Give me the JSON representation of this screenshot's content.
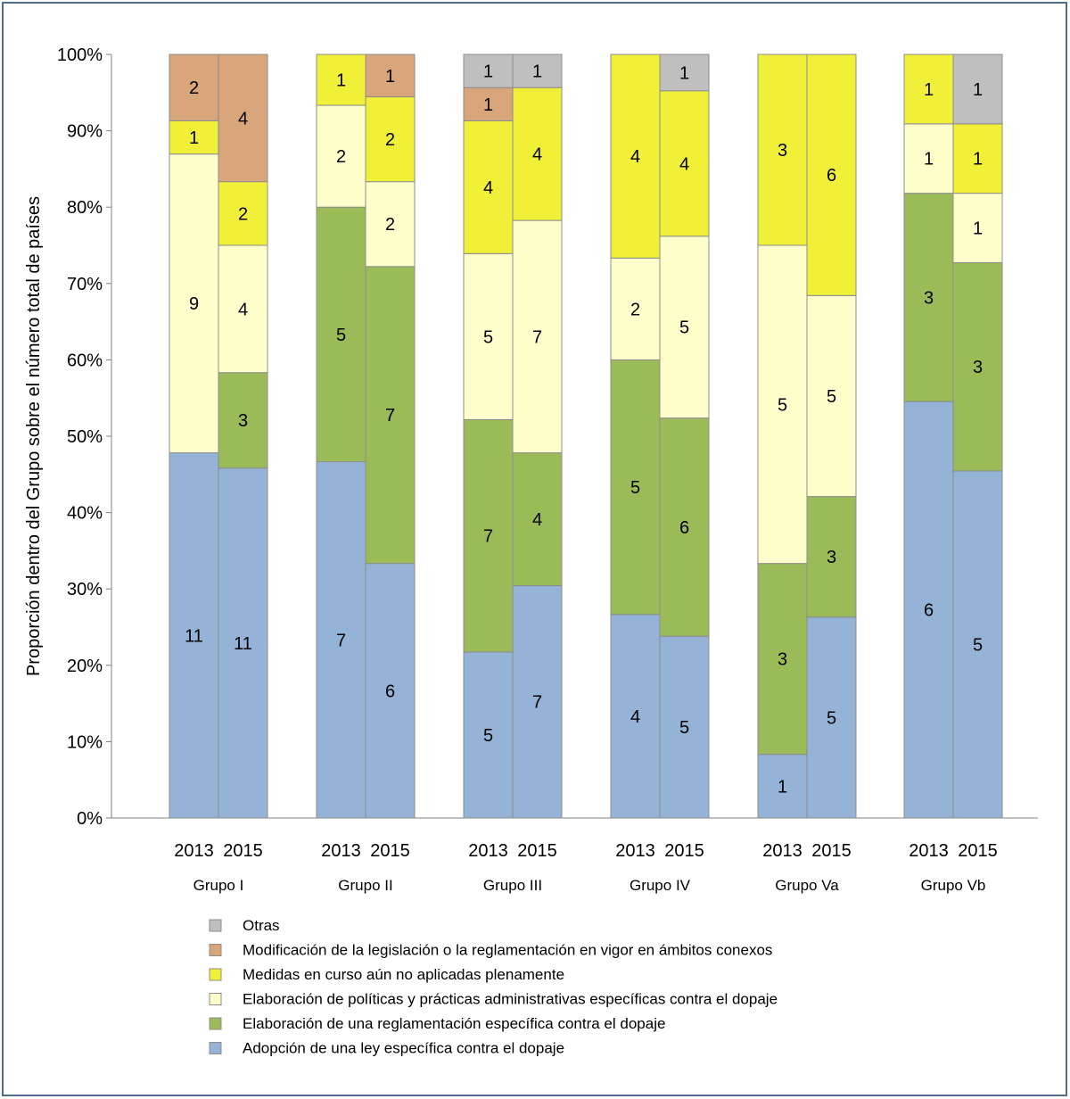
{
  "chart_data": {
    "type": "bar",
    "stacked": true,
    "normalized": true,
    "title": "",
    "ylabel": "Proporción dentro del Grupo sobre el número total de países",
    "xlabel": "",
    "ylim": [
      0,
      100
    ],
    "yticks": [
      "0%",
      "10%",
      "20%",
      "30%",
      "40%",
      "50%",
      "60%",
      "70%",
      "80%",
      "90%",
      "100%"
    ],
    "groups": [
      {
        "name": "Grupo I",
        "bars": [
          {
            "label": "2013",
            "counts": [
              11,
              0,
              9,
              1,
              2,
              0
            ]
          },
          {
            "label": "2015",
            "counts": [
              11,
              3,
              4,
              2,
              4,
              0
            ]
          }
        ]
      },
      {
        "name": "Grupo  II",
        "bars": [
          {
            "label": "2013",
            "counts": [
              7,
              5,
              2,
              1,
              0,
              0
            ]
          },
          {
            "label": "2015",
            "counts": [
              6,
              7,
              2,
              2,
              1,
              0
            ]
          }
        ]
      },
      {
        "name": "Grupo   III",
        "bars": [
          {
            "label": "2013",
            "counts": [
              5,
              7,
              5,
              4,
              1,
              1
            ]
          },
          {
            "label": "2015",
            "counts": [
              7,
              4,
              7,
              4,
              0,
              1
            ]
          }
        ]
      },
      {
        "name": "Grupo IV",
        "bars": [
          {
            "label": "2013",
            "counts": [
              4,
              5,
              2,
              4,
              0,
              0
            ]
          },
          {
            "label": "2015",
            "counts": [
              5,
              6,
              5,
              4,
              0,
              1
            ]
          }
        ]
      },
      {
        "name": "Grupo Va",
        "bars": [
          {
            "label": "2013",
            "counts": [
              1,
              3,
              5,
              3,
              0,
              0
            ]
          },
          {
            "label": "2015",
            "counts": [
              5,
              3,
              5,
              6,
              0,
              0
            ]
          }
        ]
      },
      {
        "name": "Grupo Vb",
        "bars": [
          {
            "label": "2013",
            "counts": [
              6,
              3,
              1,
              1,
              0,
              0
            ]
          },
          {
            "label": "2015",
            "counts": [
              5,
              3,
              1,
              1,
              0,
              1
            ]
          }
        ]
      }
    ],
    "series": [
      {
        "name": "Adopción de una ley específica contra el dopaje",
        "color": "#95b3d7"
      },
      {
        "name": "Elaboración de una reglamentación específica contra el dopaje",
        "color": "#9bbb59"
      },
      {
        "name": "Elaboración de políticas y prácticas administrativas específicas contra el dopaje",
        "color": "#ffffcc"
      },
      {
        "name": "Medidas en curso aún no aplicadas plenamente",
        "color": "#f0f038"
      },
      {
        "name": "Modificación de la legislación o la reglamentación en vigor en ámbitos conexos",
        "color": "#d9a67c"
      },
      {
        "name": "Otras",
        "color": "#bfbfbf"
      }
    ],
    "legend_order": [
      5,
      4,
      3,
      2,
      1,
      0
    ],
    "legend_position": "bottom",
    "grid": false
  }
}
